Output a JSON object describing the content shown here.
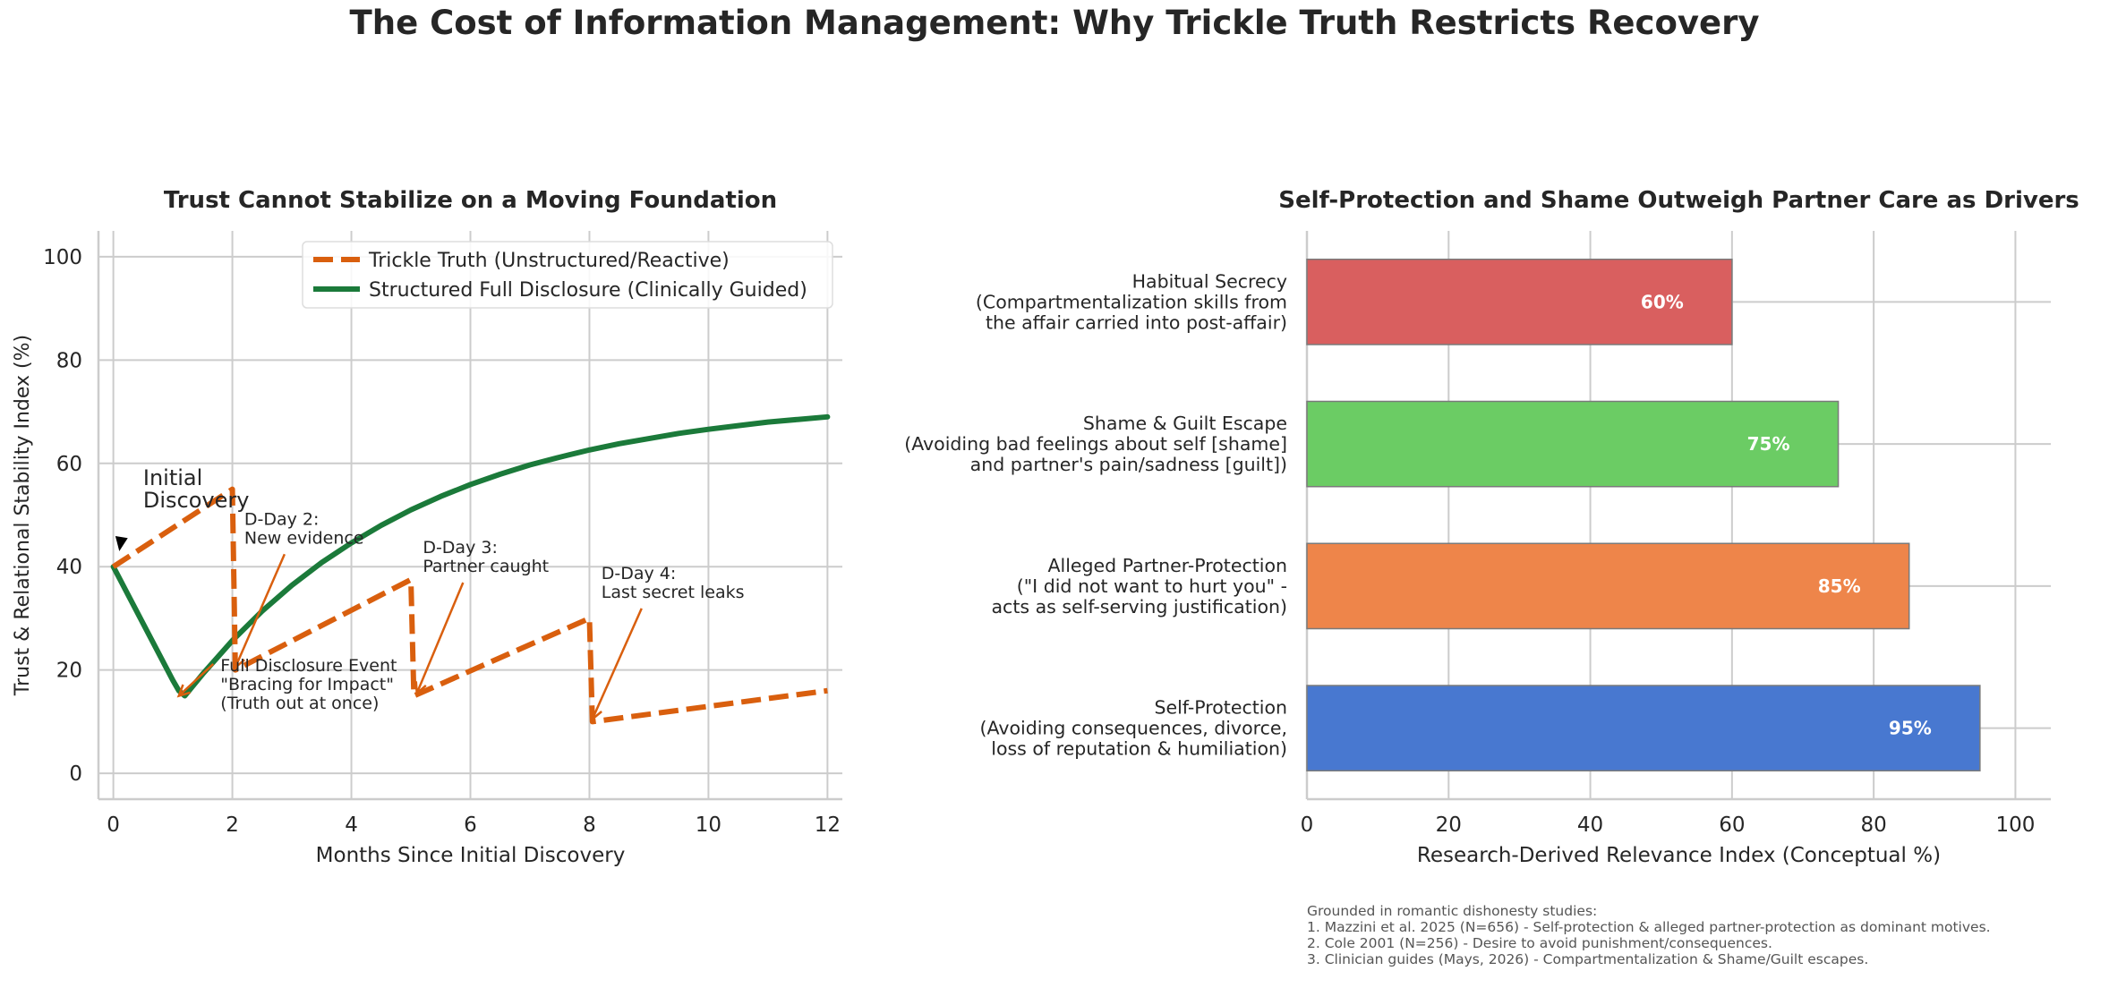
{
  "title": "The Cost of Information Management: Why Trickle Truth Restricts Recovery",
  "colors": {
    "trickle": "#d95f0e",
    "structured": "#1b7a3a",
    "grid": "#cccccc",
    "bar_edge": "#7a7a7a"
  },
  "chart_data": [
    {
      "type": "line",
      "title": "Trust Cannot Stabilize on a Moving Foundation",
      "xlabel": "Months Since Initial Discovery",
      "ylabel": "Trust & Relational Stability Index (%)",
      "xlim": [
        -0.25,
        12.25
      ],
      "ylim": [
        -5,
        105
      ],
      "xticks": [
        0,
        2,
        4,
        6,
        8,
        10,
        12
      ],
      "yticks": [
        0,
        20,
        40,
        60,
        80,
        100
      ],
      "grid": true,
      "legend": "top-right",
      "series": [
        {
          "name": "Trickle Truth (Unstructured/Reactive)",
          "style": "dashed",
          "x": [
            0,
            2,
            2.05,
            5,
            5.05,
            8,
            8.05,
            12
          ],
          "y": [
            40,
            55,
            20,
            37.5,
            15,
            30,
            10,
            16
          ]
        },
        {
          "name": "Structured Full Disclosure (Clinically Guided)",
          "style": "solid",
          "x": [
            0,
            0.25,
            0.5,
            0.75,
            1.0,
            1.1,
            1.2,
            1.5,
            2,
            2.5,
            3,
            3.5,
            4,
            4.5,
            5,
            5.5,
            6,
            6.5,
            7,
            7.5,
            8,
            8.5,
            9,
            9.5,
            10,
            10.5,
            11,
            11.5,
            12
          ],
          "y": [
            40,
            34.5,
            29,
            23.5,
            18,
            16,
            15,
            19.2,
            25.7,
            31.4,
            36.4,
            40.8,
            44.6,
            48,
            51,
            53.6,
            55.9,
            57.9,
            59.7,
            61.2,
            62.6,
            63.8,
            64.8,
            65.8,
            66.6,
            67.3,
            68,
            68.5,
            69
          ]
        }
      ],
      "annotations": [
        {
          "lines": [
            "Initial",
            "Discovery"
          ],
          "x": 0.1,
          "y": 43,
          "tx": 0.5,
          "ty": 51.5,
          "size": "large",
          "arrow": "black"
        },
        {
          "lines": [
            "D-Day 2:",
            "New evidence"
          ],
          "x": 2.05,
          "y": 20.5,
          "tx": 2.2,
          "ty": 44.5
        },
        {
          "lines": [
            "D-Day 3:",
            "Partner caught"
          ],
          "x": 5.1,
          "y": 15.5,
          "tx": 5.2,
          "ty": 39
        },
        {
          "lines": [
            "D-Day 4:",
            "Last secret leaks"
          ],
          "x": 8.05,
          "y": 10.5,
          "tx": 8.2,
          "ty": 34
        },
        {
          "lines": [
            "Full Disclosure Event",
            "\"Bracing for Impact\"",
            "(Truth out at once)"
          ],
          "x": 1.1,
          "y": 15,
          "tx": 1.8,
          "ty": 12.5
        }
      ]
    },
    {
      "type": "bar",
      "orientation": "horizontal",
      "title": "Self-Protection and Shame Outweigh Partner Care as Drivers",
      "xlabel": "Research-Derived Relevance Index (Conceptual %)",
      "xlim": [
        0,
        105
      ],
      "xticks": [
        0,
        20,
        40,
        60,
        80,
        100
      ],
      "grid": true,
      "categories": [
        [
          "Habitual Secrecy",
          "(Compartmentalization skills from",
          "the affair carried into post-affair)"
        ],
        [
          "Shame & Guilt Escape",
          "(Avoiding bad feelings about self [shame]",
          "and partner's pain/sadness [guilt])"
        ],
        [
          "Alleged Partner-Protection",
          "(\"I did not want to hurt you\" -",
          "acts as self-serving justification)"
        ],
        [
          "Self-Protection",
          "(Avoiding consequences, divorce,",
          "loss of reputation & humiliation)"
        ]
      ],
      "values": [
        60,
        75,
        85,
        95
      ],
      "value_labels": [
        "60%",
        "75%",
        "85%",
        "95%"
      ],
      "bar_colors": [
        "#d95f5f",
        "#6bcc64",
        "#ee854a",
        "#4878d0"
      ]
    }
  ],
  "footnote": [
    "Grounded in romantic dishonesty studies:",
    "1. Mazzini et al. 2025 (N=656) - Self-protection & alleged partner-protection as dominant motives.",
    "2. Cole 2001 (N=256) - Desire to avoid punishment/consequences.",
    "3. Clinician guides (Mays, 2026) - Compartmentalization & Shame/Guilt escapes."
  ]
}
